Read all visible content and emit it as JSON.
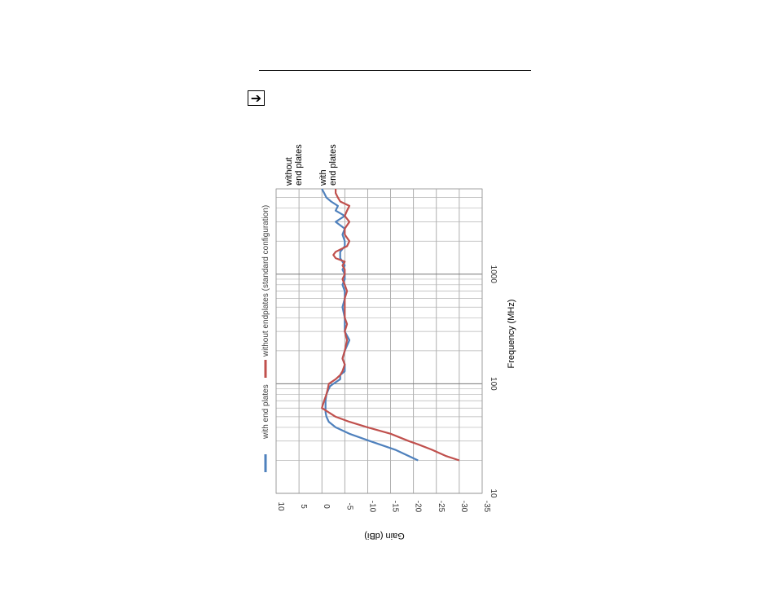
{
  "header": {
    "arrow_icon": "right-arrow-icon",
    "arrow_glyph": "➔"
  },
  "chart_data": {
    "type": "line",
    "xlabel": "Frequency (MHz)",
    "ylabel": "Gain (dBi)",
    "xscale": "log",
    "xlim": [
      10,
      6000
    ],
    "ylim": [
      -35,
      10
    ],
    "xticks": [
      "10",
      "100",
      "1000"
    ],
    "yticks": [
      "10",
      "5",
      "0",
      "-5",
      "-10",
      "-15",
      "-20",
      "-25",
      "-30",
      "-35"
    ],
    "grid": true,
    "orientation": "rotated 90° clockwise",
    "legend_position": "top",
    "annotations": [
      {
        "lines": [
          "without",
          "end plates"
        ],
        "color": "#c0504d"
      },
      {
        "lines": [
          "with",
          "end plates"
        ],
        "color": "#4f81bd"
      }
    ],
    "series": [
      {
        "name": "with end plates",
        "color": "#4f81bd",
        "x": [
          20,
          25,
          30,
          35,
          40,
          45,
          50,
          55,
          60,
          70,
          80,
          90,
          95,
          100,
          110,
          120,
          130,
          140,
          150,
          170,
          200,
          250,
          300,
          350,
          400,
          500,
          600,
          700,
          800,
          900,
          1000,
          1100,
          1200,
          1300,
          1400,
          1500,
          1600,
          1800,
          2000,
          2300,
          2600,
          3000,
          3400,
          3800,
          4200,
          4600,
          5000,
          5500,
          6000
        ],
        "y": [
          -21,
          -16,
          -10.5,
          -6,
          -3,
          -1.5,
          -1,
          -0.8,
          -0.8,
          -0.8,
          -1,
          -1.5,
          -1.8,
          -2.5,
          -4,
          -4,
          -5,
          -5,
          -5,
          -4.5,
          -5,
          -6,
          -5,
          -5,
          -5,
          -4.5,
          -5,
          -5,
          -4.5,
          -5,
          -5,
          -4.5,
          -5,
          -4.5,
          -4,
          -4,
          -4,
          -5,
          -5,
          -4.5,
          -5,
          -3,
          -5,
          -3,
          -3.5,
          -2,
          -1,
          -0.5,
          0
        ]
      },
      {
        "name": "without endplates (standard configuration)",
        "color": "#c0504d",
        "x": [
          20,
          22,
          25,
          28,
          30,
          35,
          40,
          45,
          50,
          60,
          70,
          80,
          90,
          100,
          110,
          120,
          130,
          150,
          170,
          200,
          250,
          300,
          350,
          400,
          500,
          600,
          700,
          800,
          900,
          1000,
          1100,
          1200,
          1300,
          1400,
          1500,
          1600,
          1800,
          2000,
          2300,
          2600,
          3000,
          3400,
          3800,
          4200,
          4600,
          5000,
          5500,
          6000
        ],
        "y": [
          -30,
          -27,
          -24,
          -21,
          -19,
          -15,
          -10,
          -6,
          -3,
          0,
          -0.5,
          -1,
          -1.3,
          -1.5,
          -3,
          -4,
          -4.5,
          -5,
          -4.5,
          -5,
          -5.5,
          -5,
          -5.5,
          -5,
          -5,
          -5,
          -5.5,
          -5,
          -4.5,
          -5,
          -5,
          -4.5,
          -5,
          -3,
          -2.5,
          -3,
          -5.5,
          -6,
          -5,
          -5,
          -6,
          -5,
          -5.5,
          -6,
          -4,
          -3.5,
          -3,
          -3
        ]
      }
    ]
  }
}
